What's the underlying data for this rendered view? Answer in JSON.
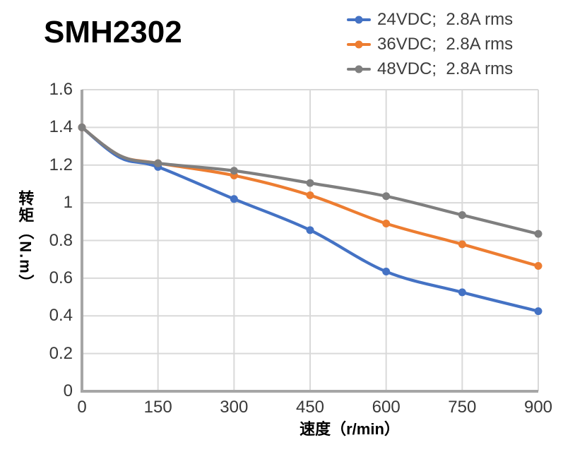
{
  "chart_data": {
    "type": "line",
    "title": "SMH2302",
    "xlabel": "速度（r/min）",
    "ylabel": "转矩（N.m）",
    "xlim": [
      0,
      900
    ],
    "ylim": [
      0,
      1.6
    ],
    "grid": true,
    "legend_position": "top-right",
    "x_ticks": [
      0,
      150,
      300,
      450,
      600,
      750,
      900
    ],
    "x_tick_labels": [
      "0",
      "150",
      "300",
      "450",
      "600",
      "750",
      "900"
    ],
    "y_ticks": [
      0,
      0.2,
      0.4,
      0.6,
      0.8,
      1,
      1.2,
      1.4,
      1.6
    ],
    "y_tick_labels": [
      "0",
      "0.2",
      "0.4",
      "0.6",
      "0.8",
      "1",
      "1.2",
      "1.4",
      "1.6"
    ],
    "x": [
      0,
      75,
      150,
      300,
      450,
      600,
      750,
      900
    ],
    "marker_x": [
      0,
      150,
      300,
      450,
      600,
      750,
      900
    ],
    "series": [
      {
        "name": "24VDC",
        "label": "24VDC;  2.8A rms",
        "color": "#4472C4",
        "values": [
          1.4,
          1.24,
          1.19,
          1.02,
          0.855,
          0.635,
          0.525,
          0.425
        ]
      },
      {
        "name": "36VDC",
        "label": "36VDC;  2.8A rms",
        "color": "#ED7D31",
        "values": [
          1.4,
          1.25,
          1.21,
          1.145,
          1.04,
          0.89,
          0.78,
          0.665
        ]
      },
      {
        "name": "48VDC",
        "label": "48VDC;  2.8A rms",
        "color": "#7F7F7F",
        "values": [
          1.4,
          1.25,
          1.21,
          1.17,
          1.105,
          1.035,
          0.935,
          0.835
        ]
      }
    ],
    "colors": {
      "grid": "#D9D9D9",
      "axis": "#A6A6A6",
      "tick_text": "#383838",
      "title_text": "#000000"
    }
  }
}
